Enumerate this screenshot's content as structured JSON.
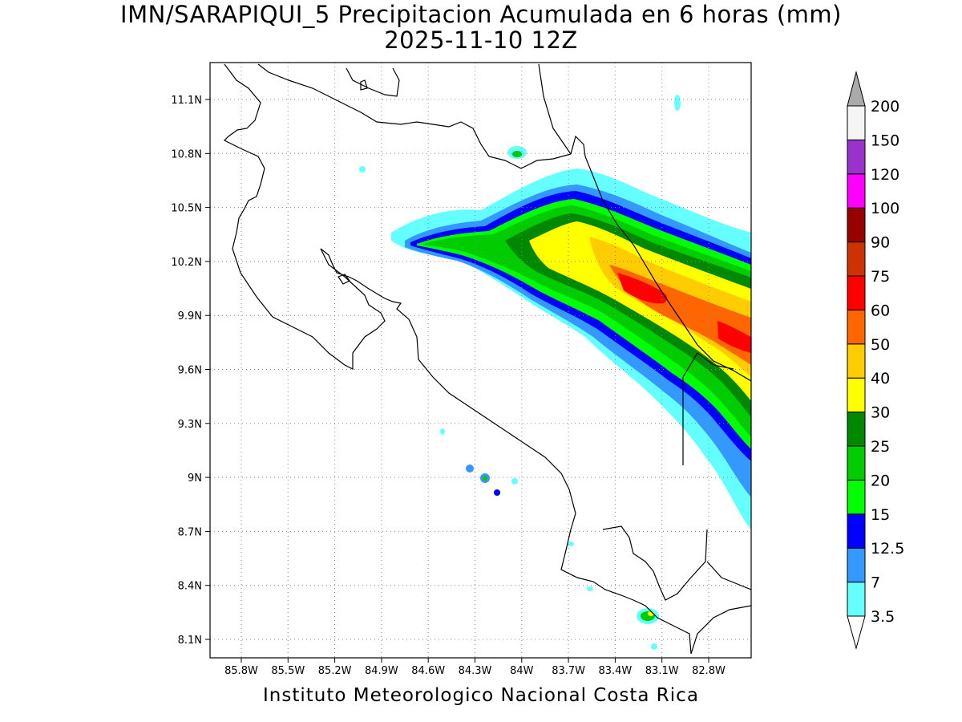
{
  "title": {
    "line1": "IMN/SARAPIQUI_5 Precipitacion Acumulada en 6 horas (mm)",
    "line2": "2025-11-10 12Z"
  },
  "footer": "Instituto Meteorologico Nacional Costa Rica",
  "map": {
    "lon_range": [
      -86.0,
      -82.4
    ],
    "lat_range": [
      8.0,
      11.3
    ],
    "grid": true,
    "lon_ticks": [
      "85.8W",
      "85.5W",
      "85.2W",
      "84.9W",
      "84.6W",
      "84.3W",
      "84W",
      "83.7W",
      "83.4W",
      "83.1W",
      "82.8W"
    ],
    "lat_ticks": [
      "11.1N",
      "10.8N",
      "10.5N",
      "10.2N",
      "9.9N",
      "9.6N",
      "9.3N",
      "9N",
      "8.7N",
      "8.4N",
      "8.1N"
    ]
  },
  "colorbar": {
    "labels": [
      "3.5",
      "7",
      "12.5",
      "15",
      "20",
      "25",
      "30",
      "40",
      "50",
      "60",
      "75",
      "90",
      "100",
      "120",
      "150",
      "200"
    ],
    "colors": [
      "#66ffff",
      "#3399ff",
      "#0000ff",
      "#00ff00",
      "#00cc00",
      "#008800",
      "#ffff00",
      "#ffcc00",
      "#ff6600",
      "#ff0000",
      "#cc3300",
      "#990000",
      "#ff00ff",
      "#9933cc",
      "#f5f5f5",
      "#aaaaaa"
    ]
  }
}
